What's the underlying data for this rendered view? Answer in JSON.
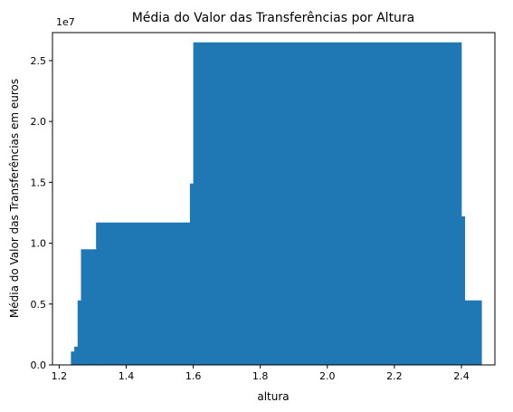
{
  "chart_data": {
    "type": "bar",
    "title": "Média do Valor das Transferências por Altura",
    "xlabel": "altura",
    "ylabel": "Média do Valor das Transferências em euros",
    "y_offset_label": "1e7",
    "xlim": [
      1.18,
      2.5
    ],
    "ylim": [
      0,
      2.73
    ],
    "x_ticks": [
      1.2,
      1.4,
      1.6,
      1.8,
      2.0,
      2.2,
      2.4
    ],
    "x_tick_labels": [
      "1.2",
      "1.4",
      "1.6",
      "1.8",
      "2.0",
      "2.2",
      "2.4"
    ],
    "y_ticks": [
      0.0,
      0.5,
      1.0,
      1.5,
      2.0,
      2.5
    ],
    "y_tick_labels": [
      "0.0",
      "0.5",
      "1.0",
      "1.5",
      "2.0",
      "2.5"
    ],
    "y_unit": "×10^7 euros",
    "grid": false,
    "bar_color": "#1f77b4",
    "bars": [
      {
        "x_start": 1.235,
        "x_end": 1.245,
        "value": 0.11
      },
      {
        "x_start": 1.245,
        "x_end": 1.255,
        "value": 0.15
      },
      {
        "x_start": 1.255,
        "x_end": 1.265,
        "value": 0.53
      },
      {
        "x_start": 1.265,
        "x_end": 1.31,
        "value": 0.95
      },
      {
        "x_start": 1.31,
        "x_end": 1.59,
        "value": 1.17
      },
      {
        "x_start": 1.59,
        "x_end": 1.6,
        "value": 1.49
      },
      {
        "x_start": 1.6,
        "x_end": 2.4,
        "value": 2.65
      },
      {
        "x_start": 2.4,
        "x_end": 2.41,
        "value": 1.22
      },
      {
        "x_start": 2.41,
        "x_end": 2.46,
        "value": 0.53
      }
    ]
  }
}
